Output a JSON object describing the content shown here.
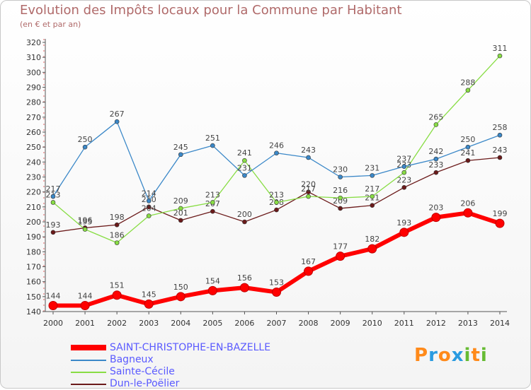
{
  "header": {
    "title": "Evolution des Impôts locaux pour la Commune par Habitant",
    "subtitle": "(en € et par an)"
  },
  "logo": {
    "text": "Proxiti"
  },
  "chart_data": {
    "type": "line",
    "title": "Evolution des Impôts locaux pour la Commune par Habitant",
    "subtitle": "(en € et par an)",
    "xlabel": "",
    "ylabel": "",
    "ylim": [
      140,
      320
    ],
    "yticks": [
      140,
      150,
      160,
      170,
      180,
      190,
      200,
      210,
      220,
      230,
      240,
      250,
      260,
      270,
      280,
      290,
      300,
      310,
      320
    ],
    "grid": false,
    "legend_position": "bottom-left",
    "categories": [
      "2000",
      "2001",
      "2002",
      "2003",
      "2004",
      "2005",
      "2006",
      "2007",
      "2008",
      "2009",
      "2010",
      "2011",
      "2012",
      "2013",
      "2014"
    ],
    "series": [
      {
        "name": "Dun-le-Poëlier",
        "color": "#6b1a1a",
        "values": [
          193,
          196,
          198,
          210,
          201,
          207,
          200,
          208,
          220,
          209,
          211,
          223,
          233,
          241,
          243
        ]
      },
      {
        "name": "Sainte-Cécile",
        "color": "#88dd44",
        "values": [
          213,
          195,
          186,
          204,
          209,
          213,
          241,
          213,
          217,
          216,
          217,
          233,
          265,
          288,
          311
        ]
      },
      {
        "name": "Bagneux",
        "color": "#3b88c8",
        "values": [
          217,
          250,
          267,
          214,
          245,
          251,
          231,
          246,
          243,
          230,
          231,
          237,
          242,
          250,
          258
        ]
      },
      {
        "name": "SAINT-CHRISTOPHE-EN-BAZELLE",
        "color": "#ff0000",
        "values": [
          144,
          144,
          151,
          145,
          150,
          154,
          156,
          153,
          167,
          177,
          182,
          193,
          203,
          206,
          199
        ]
      }
    ],
    "legend_order": [
      "SAINT-CHRISTOPHE-EN-BAZELLE",
      "Bagneux",
      "Sainte-Cécile",
      "Dun-le-Poëlier"
    ]
  }
}
